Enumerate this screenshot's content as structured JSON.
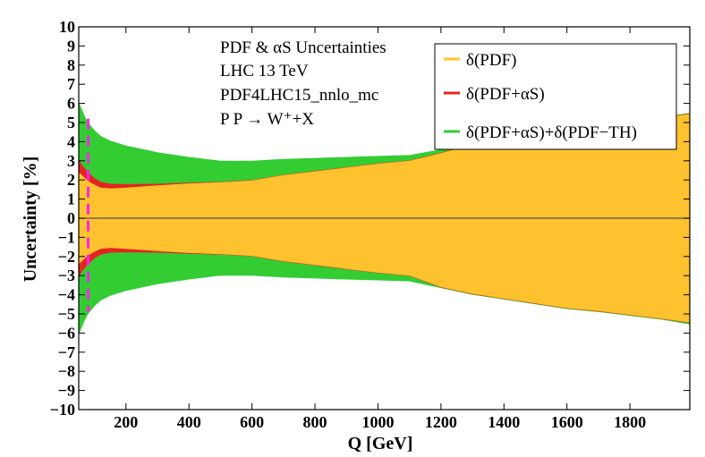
{
  "chart_data": {
    "type": "area",
    "title": "",
    "xlabel": "Q [GeV]",
    "ylabel": "Uncertainty [%]",
    "xlim": [
      50,
      1990
    ],
    "ylim": [
      -10,
      10
    ],
    "xticks": [
      200,
      400,
      600,
      800,
      1000,
      1200,
      1400,
      1600,
      1800
    ],
    "yticks": [
      -10,
      -9,
      -8,
      -7,
      -6,
      -5,
      -4,
      -3,
      -2,
      -1,
      0,
      1,
      2,
      3,
      4,
      5,
      6,
      7,
      8,
      9,
      10
    ],
    "annotations": [
      "PDF & αS Uncertainties",
      "LHC 13 TeV",
      "PDF4LHC15_nnlo_mc",
      "P P → W⁺+X"
    ],
    "legend_position": "top-right",
    "x": [
      50,
      60,
      70,
      80,
      100,
      120,
      150,
      200,
      300,
      400,
      500,
      600,
      700,
      800,
      900,
      1000,
      1100,
      1200,
      1300,
      1400,
      1500,
      1600,
      1700,
      1800,
      1900,
      1990
    ],
    "series": [
      {
        "name": "δ(PDF)",
        "color": "#fdc22d",
        "upper": [
          2.4,
          2.25,
          2.1,
          1.95,
          1.75,
          1.6,
          1.55,
          1.6,
          1.72,
          1.82,
          1.88,
          1.97,
          2.25,
          2.45,
          2.65,
          2.85,
          3.0,
          3.4,
          3.85,
          4.2,
          4.45,
          4.7,
          4.85,
          5.05,
          5.25,
          5.45
        ],
        "lower": [
          -2.4,
          -2.25,
          -2.1,
          -1.95,
          -1.75,
          -1.6,
          -1.55,
          -1.6,
          -1.72,
          -1.82,
          -1.88,
          -1.97,
          -2.25,
          -2.45,
          -2.65,
          -2.85,
          -3.0,
          -3.6,
          -3.95,
          -4.2,
          -4.45,
          -4.7,
          -4.85,
          -5.05,
          -5.25,
          -5.45
        ]
      },
      {
        "name": "δ(PDF+αS)",
        "color": "#e52421",
        "upper": [
          3.1,
          2.8,
          2.6,
          2.4,
          2.1,
          1.9,
          1.8,
          1.78,
          1.8,
          1.86,
          1.9,
          1.99,
          2.27,
          2.47,
          2.67,
          2.87,
          3.02,
          3.42,
          3.87,
          4.22,
          4.47,
          4.72,
          4.87,
          5.07,
          5.27,
          5.47
        ],
        "lower": [
          -3.1,
          -2.8,
          -2.6,
          -2.4,
          -2.1,
          -1.9,
          -1.8,
          -1.78,
          -1.8,
          -1.86,
          -1.9,
          -1.99,
          -2.27,
          -2.47,
          -2.67,
          -2.87,
          -3.02,
          -3.62,
          -3.97,
          -4.22,
          -4.47,
          -4.72,
          -4.87,
          -5.07,
          -5.27,
          -5.47
        ]
      },
      {
        "name": "δ(PDF+αS)+δ(PDF−TH)",
        "color": "#33cc33",
        "upper": [
          6.1,
          5.7,
          5.3,
          5.0,
          4.6,
          4.3,
          4.05,
          3.8,
          3.45,
          3.2,
          3.0,
          3.0,
          3.1,
          3.15,
          3.2,
          3.25,
          3.3,
          3.6,
          3.95,
          4.25,
          4.5,
          4.75,
          4.9,
          5.1,
          5.3,
          5.5
        ],
        "lower": [
          -6.1,
          -5.7,
          -5.3,
          -5.0,
          -4.6,
          -4.3,
          -4.05,
          -3.8,
          -3.45,
          -3.2,
          -3.0,
          -3.0,
          -3.1,
          -3.15,
          -3.2,
          -3.25,
          -3.3,
          -3.65,
          -4.0,
          -4.25,
          -4.5,
          -4.75,
          -4.9,
          -5.1,
          -5.3,
          -5.55
        ]
      }
    ],
    "marker_line": {
      "x": 80,
      "y_range": [
        -4.9,
        5.2
      ],
      "color": "#ff22ee",
      "style": "dashed"
    },
    "zero_line_color": "#555555"
  }
}
